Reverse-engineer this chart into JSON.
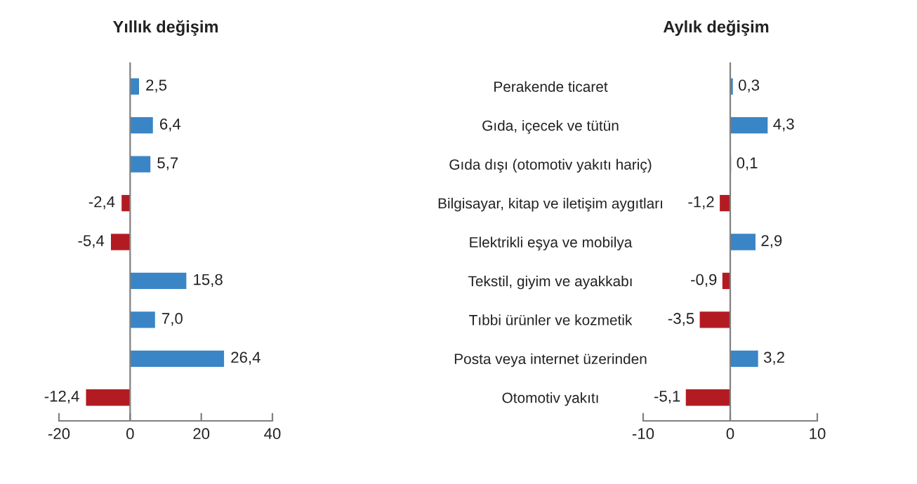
{
  "chart_data": [
    {
      "type": "bar",
      "orientation": "horizontal",
      "title": "Yıllık değişim",
      "categories": [
        null,
        null,
        null,
        null,
        null,
        null,
        null,
        null,
        null
      ],
      "values": [
        2.5,
        6.4,
        5.7,
        -2.4,
        -5.4,
        15.8,
        7.0,
        26.4,
        -12.4
      ],
      "value_labels": [
        "2,5",
        "6,4",
        "5,7",
        "-2,4",
        "-5,4",
        "15,8",
        "7,0",
        "26,4",
        "-12,4"
      ],
      "colors": [
        "#3a85c6",
        "#3a85c6",
        "#3a85c6",
        "#b31b22",
        "#b31b22",
        "#3a85c6",
        "#3a85c6",
        "#3a85c6",
        "#b31b22"
      ],
      "xlim": [
        -20,
        40
      ],
      "xticks": [
        -20,
        0,
        20,
        40
      ],
      "tick_labels": "x"
    },
    {
      "type": "bar",
      "orientation": "horizontal",
      "title": "Aylık değişim",
      "categories": [
        "Perakende ticaret",
        "Gıda, içecek ve tütün",
        "Gıda dışı (otomotiv yakıtı hariç)",
        "Bilgisayar, kitap ve iletişim aygıtları",
        "Elektrikli eşya ve mobilya",
        "Tekstil, giyim ve ayakkabı",
        "Tıbbi ürünler ve kozmetik",
        "Posta veya internet üzerinden",
        "Otomotiv yakıtı"
      ],
      "values": [
        0.3,
        4.3,
        0.1,
        -1.2,
        2.9,
        -0.9,
        -3.5,
        3.2,
        -5.1
      ],
      "value_labels": [
        "0,3",
        "4,3",
        "0,1",
        "-1,2",
        "2,9",
        "-0,9",
        "-3,5",
        "3,2",
        "-5,1"
      ],
      "colors": [
        "#3a85c6",
        "#3a85c6",
        "#3a85c6",
        "#b31b22",
        "#3a85c6",
        "#b31b22",
        "#b31b22",
        "#3a85c6",
        "#b31b22"
      ],
      "xlim": [
        -10,
        10
      ],
      "xticks": [
        -10,
        0,
        10
      ]
    }
  ]
}
